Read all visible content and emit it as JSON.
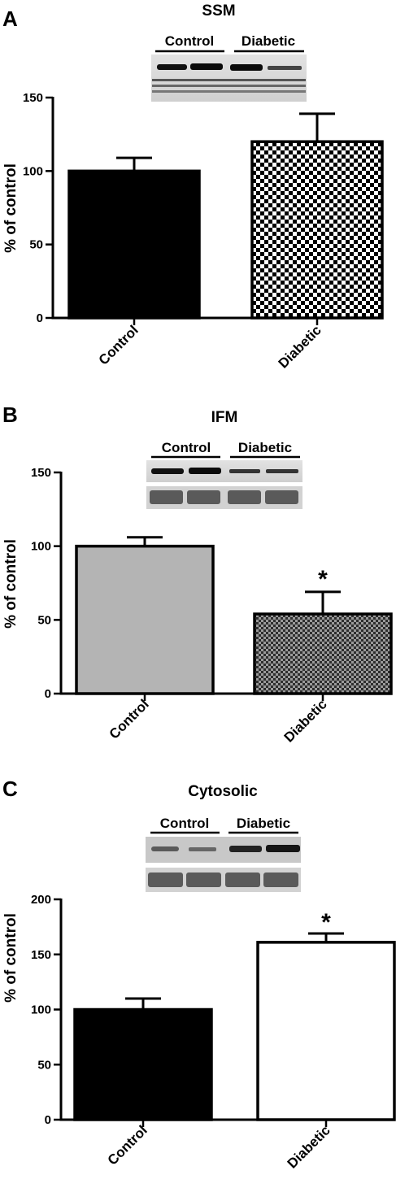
{
  "chart_data": [
    {
      "type": "bar",
      "panel_label": "A",
      "title": "SSM",
      "blot_labels": [
        "Control",
        "Diabetic"
      ],
      "ylabel": "% of control",
      "ylim": [
        0,
        150
      ],
      "yticks": [
        0,
        50,
        100,
        150
      ],
      "categories": [
        "Control",
        "Diabetic"
      ],
      "values": [
        100,
        120
      ],
      "errors": [
        9,
        19
      ],
      "fills": [
        "solid-black",
        "checker"
      ],
      "significance": [
        "",
        ""
      ]
    },
    {
      "type": "bar",
      "panel_label": "B",
      "title": "IFM",
      "blot_labels": [
        "Control",
        "Diabetic"
      ],
      "ylabel": "% of control",
      "ylim": [
        0,
        150
      ],
      "yticks": [
        0,
        50,
        100,
        150
      ],
      "categories": [
        "Control",
        "Diabetic"
      ],
      "values": [
        100,
        54
      ],
      "errors": [
        6,
        15
      ],
      "fills": [
        "solid-gray",
        "checker-small"
      ],
      "significance": [
        "",
        "*"
      ]
    },
    {
      "type": "bar",
      "panel_label": "C",
      "title": "Cytosolic",
      "blot_labels": [
        "Control",
        "Diabetic"
      ],
      "ylabel": "% of control",
      "ylim": [
        0,
        200
      ],
      "yticks": [
        0,
        50,
        100,
        150,
        200
      ],
      "categories": [
        "Control",
        "Diabetic"
      ],
      "values": [
        100,
        161
      ],
      "errors": [
        10,
        8
      ],
      "fills": [
        "solid-black",
        "white"
      ],
      "significance": [
        "",
        "*"
      ]
    }
  ],
  "colors": {
    "axis": "#000000",
    "bar_black": "#000000",
    "bar_gray": "#b4b4b4",
    "bar_white": "#ffffff",
    "checker_dark": "#000000",
    "checker_light": "#ffffff",
    "checker_small_dark": "#2e2e2e",
    "checker_small_light": "#9a9a9a",
    "blot_background": "#dcdcdc",
    "blot_band": "#111111"
  }
}
